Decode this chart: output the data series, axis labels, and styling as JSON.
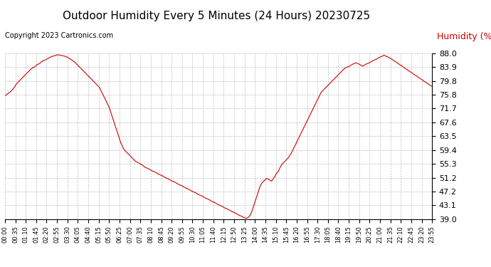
{
  "title": "Outdoor Humidity Every 5 Minutes (24 Hours) 20230725",
  "ylabel": "Humidity (%)",
  "copyright": "Copyright 2023 Cartronics.com",
  "line_color": "#cc0000",
  "bg_color": "#ffffff",
  "grid_color": "#b0b0b0",
  "yticks": [
    39.0,
    43.1,
    47.2,
    51.2,
    55.3,
    59.4,
    63.5,
    67.6,
    71.7,
    75.8,
    79.8,
    83.9,
    88.0
  ],
  "ylim": [
    39.0,
    88.0
  ],
  "humidity_data": [
    75.5,
    75.8,
    76.2,
    76.5,
    77.0,
    77.5,
    78.2,
    79.0,
    79.5,
    80.0,
    80.5,
    81.0,
    81.5,
    82.0,
    82.5,
    83.0,
    83.5,
    83.8,
    84.0,
    84.5,
    84.8,
    85.0,
    85.5,
    85.8,
    86.0,
    86.2,
    86.5,
    86.8,
    87.0,
    87.2,
    87.3,
    87.5,
    87.6,
    87.5,
    87.4,
    87.3,
    87.2,
    87.0,
    86.8,
    86.5,
    86.2,
    85.8,
    85.5,
    85.0,
    84.5,
    84.0,
    83.5,
    83.0,
    82.5,
    82.0,
    81.5,
    81.0,
    80.5,
    80.0,
    79.5,
    79.0,
    78.5,
    78.0,
    77.0,
    76.0,
    75.0,
    74.0,
    73.0,
    72.0,
    70.5,
    69.0,
    67.5,
    66.0,
    64.5,
    63.0,
    61.5,
    60.5,
    59.5,
    59.0,
    58.5,
    58.0,
    57.5,
    57.0,
    56.5,
    56.0,
    55.8,
    55.5,
    55.2,
    55.0,
    54.5,
    54.2,
    54.0,
    53.8,
    53.5,
    53.2,
    53.0,
    52.8,
    52.5,
    52.2,
    52.0,
    51.8,
    51.5,
    51.2,
    51.0,
    50.8,
    50.5,
    50.2,
    50.0,
    49.8,
    49.5,
    49.2,
    49.0,
    48.8,
    48.5,
    48.2,
    48.0,
    47.8,
    47.5,
    47.2,
    47.0,
    46.8,
    46.5,
    46.2,
    46.0,
    45.8,
    45.5,
    45.2,
    45.0,
    44.8,
    44.5,
    44.2,
    44.0,
    43.8,
    43.5,
    43.2,
    43.0,
    42.8,
    42.5,
    42.2,
    42.0,
    41.8,
    41.5,
    41.2,
    41.0,
    40.8,
    40.5,
    40.2,
    40.0,
    39.8,
    39.5,
    39.3,
    39.2,
    39.5,
    40.0,
    41.0,
    42.5,
    44.0,
    45.5,
    47.0,
    48.5,
    49.5,
    50.0,
    50.5,
    51.0,
    50.8,
    50.5,
    50.2,
    50.8,
    51.5,
    52.5,
    53.0,
    54.0,
    55.0,
    55.5,
    56.0,
    56.5,
    57.0,
    57.8,
    58.5,
    59.5,
    60.5,
    61.5,
    62.5,
    63.5,
    64.5,
    65.5,
    66.5,
    67.5,
    68.5,
    69.5,
    70.5,
    71.5,
    72.5,
    73.5,
    74.5,
    75.5,
    76.5,
    77.0,
    77.5,
    78.0,
    78.5,
    79.0,
    79.5,
    80.0,
    80.5,
    81.0,
    81.5,
    82.0,
    82.5,
    83.0,
    83.5,
    83.8,
    84.0,
    84.2,
    84.5,
    84.8,
    85.0,
    85.2,
    85.0,
    84.8,
    84.5,
    84.2,
    84.5,
    84.8,
    85.0,
    85.2,
    85.5,
    85.8,
    86.0,
    86.2,
    86.5,
    86.8,
    87.0,
    87.2,
    87.5,
    87.2,
    87.0,
    86.8,
    86.5,
    86.2,
    85.8,
    85.5,
    85.2,
    84.8,
    84.5,
    84.2,
    83.8,
    83.5,
    83.2,
    82.8,
    82.5,
    82.2,
    81.8,
    81.5,
    81.2,
    80.8,
    80.5,
    80.2,
    79.8,
    79.5,
    79.2,
    78.8,
    78.5,
    78.2
  ],
  "xtick_labels": [
    "00:00",
    "00:35",
    "01:10",
    "01:45",
    "02:20",
    "02:55",
    "03:30",
    "04:05",
    "04:40",
    "05:15",
    "05:50",
    "06:25",
    "07:00",
    "07:35",
    "08:10",
    "08:45",
    "09:20",
    "09:55",
    "10:30",
    "11:05",
    "11:40",
    "12:15",
    "12:50",
    "13:25",
    "14:00",
    "14:35",
    "15:10",
    "15:45",
    "16:20",
    "16:55",
    "17:30",
    "18:05",
    "18:40",
    "19:15",
    "19:50",
    "20:25",
    "21:00",
    "21:35",
    "22:10",
    "22:45",
    "23:20",
    "23:55"
  ],
  "title_fontsize": 11,
  "copyright_fontsize": 7,
  "ylabel_fontsize": 9,
  "ytick_fontsize": 8,
  "xtick_fontsize": 6
}
